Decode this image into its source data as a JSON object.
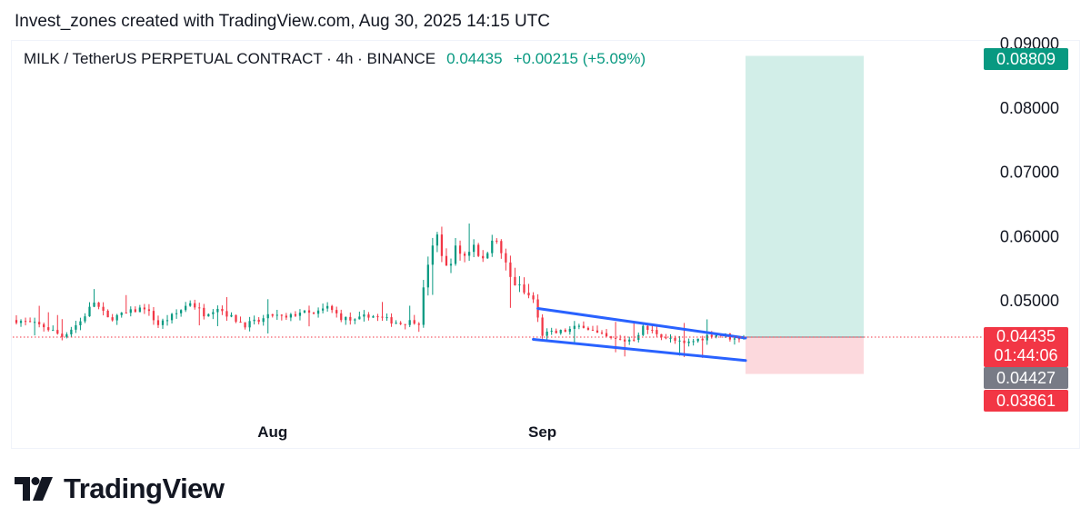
{
  "caption": "Invest_zones created with TradingView.com, Aug 30, 2025 14:15 UTC",
  "symbol": {
    "name": "MILK / TetherUS PERPETUAL CONTRACT · 4h · BINANCE",
    "last_price": "0.04435",
    "change": "+0.00215 (+5.09%)"
  },
  "price_tags": {
    "target": "0.08809",
    "last": "0.04435",
    "countdown": "01:44:06",
    "mark": "0.04427",
    "stop": "0.03861"
  },
  "brand": {
    "logo_text": "TradingView"
  },
  "colors": {
    "up": "#089981",
    "down": "#f23645",
    "wedge": "#2962ff",
    "profit_zone": "#d2eee8",
    "loss_zone": "#fcd9dd",
    "mark": "#787b86"
  },
  "chart_data": {
    "type": "candlestick",
    "timeframe": "4h",
    "y_axis": {
      "ticks": [
        "0.09000",
        "0.08000",
        "0.07000",
        "0.06000",
        "0.05000"
      ],
      "range": [
        0.0335,
        0.0915
      ]
    },
    "x_axis": {
      "ticks": [
        "Aug",
        "Sep"
      ]
    },
    "series": [
      {
        "name": "MILK / TetherUS PERPETUAL CONTRACT",
        "close_path": [
          [
            0,
            0.047
          ],
          [
            6,
            0.046
          ],
          [
            10,
            0.0445
          ],
          [
            14,
            0.0468
          ],
          [
            17,
            0.0498
          ],
          [
            20,
            0.0472
          ],
          [
            24,
            0.048
          ],
          [
            28,
            0.049
          ],
          [
            31,
            0.0463
          ],
          [
            35,
            0.048
          ],
          [
            38,
            0.0498
          ],
          [
            41,
            0.048
          ],
          [
            44,
            0.049
          ],
          [
            47,
            0.0474
          ],
          [
            50,
            0.0463
          ],
          [
            53,
            0.0468
          ],
          [
            56,
            0.0478
          ],
          [
            59,
            0.0472
          ],
          [
            62,
            0.0483
          ],
          [
            65,
            0.0478
          ],
          [
            68,
            0.049
          ],
          [
            71,
            0.0474
          ],
          [
            74,
            0.0468
          ],
          [
            77,
            0.0478
          ],
          [
            80,
            0.0472
          ],
          [
            84,
            0.0465
          ],
          [
            88,
            0.047
          ],
          [
            90,
            0.056
          ],
          [
            92,
            0.06
          ],
          [
            94,
            0.055
          ],
          [
            96,
            0.058
          ],
          [
            98,
            0.057
          ],
          [
            100,
            0.059
          ],
          [
            102,
            0.056
          ],
          [
            104,
            0.06
          ],
          [
            106,
            0.0575
          ],
          [
            108,
            0.0535
          ],
          [
            111,
            0.0512
          ],
          [
            113,
            0.0502
          ],
          [
            114,
            0.0472
          ],
          [
            115,
            0.0448
          ],
          [
            118,
            0.045
          ],
          [
            121,
            0.0455
          ],
          [
            124,
            0.0462
          ],
          [
            127,
            0.0448
          ],
          [
            130,
            0.044
          ],
          [
            133,
            0.0438
          ],
          [
            135,
            0.0442
          ],
          [
            137,
            0.0458
          ],
          [
            140,
            0.045
          ],
          [
            143,
            0.044
          ],
          [
            146,
            0.0432
          ],
          [
            149,
            0.044
          ],
          [
            152,
            0.0448
          ],
          [
            155,
            0.0446
          ],
          [
            157,
            0.044
          ],
          [
            158,
            0.0444
          ],
          [
            159,
            0.0445
          ]
        ],
        "last_close": 0.04435
      }
    ],
    "annotations": {
      "long_position": {
        "entry": 0.04435,
        "target": 0.08809,
        "stop": 0.03861
      },
      "falling_wedge": {
        "upper": [
          [
            114,
            0.0488
          ],
          [
            159,
            0.0442
          ]
        ],
        "lower": [
          [
            113,
            0.044
          ],
          [
            159,
            0.0407
          ]
        ]
      }
    },
    "grid": false
  }
}
